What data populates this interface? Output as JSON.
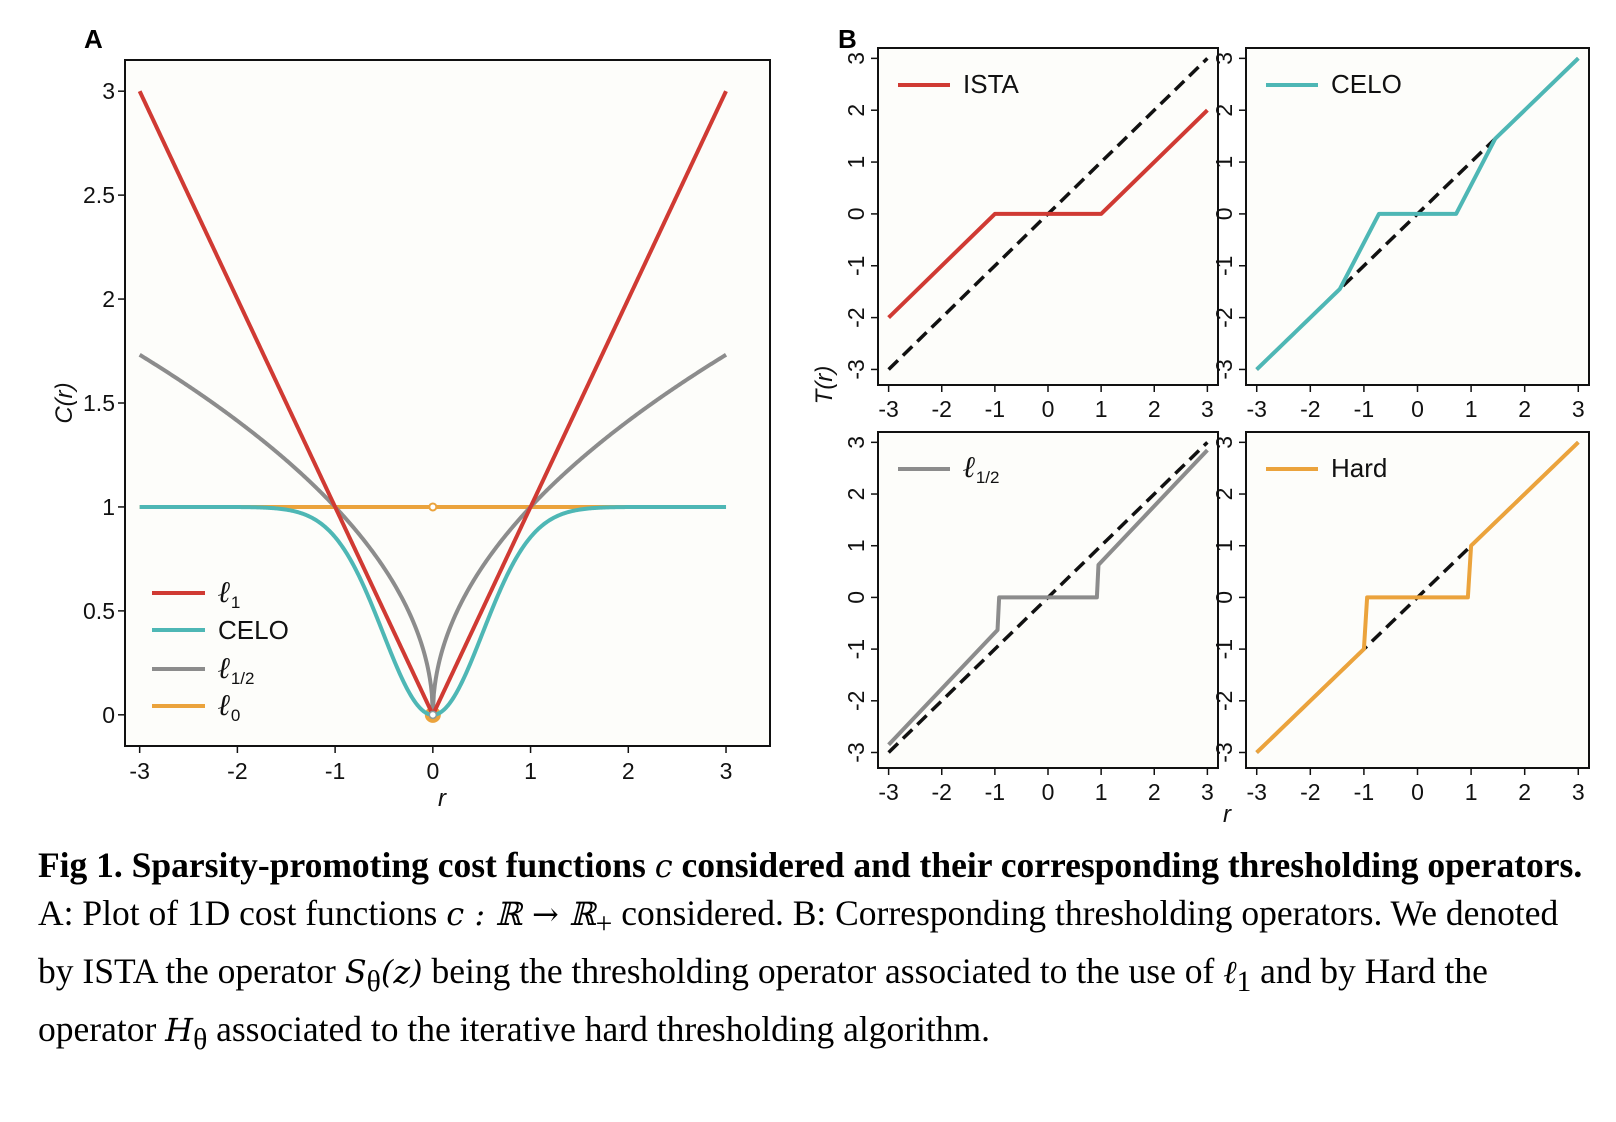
{
  "figure": {
    "panel_a_letter": "A",
    "panel_b_letter": "B"
  },
  "colors": {
    "l1": "#d03a33",
    "celo": "#4eb7b5",
    "lhalf": "#8c8c8c",
    "l0": "#eba33c",
    "identity": "#111111",
    "plot_bg": "#fdfdfa"
  },
  "chart_data": [
    {
      "id": "A",
      "type": "line",
      "xlabel": "r",
      "ylabel": "C(r)",
      "xlim": [
        -3,
        3
      ],
      "ylim": [
        0,
        3
      ],
      "xticks": [
        "-3",
        "-2",
        "-1",
        "0",
        "1",
        "2",
        "3"
      ],
      "yticks": [
        "0",
        "0.5",
        "1",
        "1.5",
        "2",
        "2.5",
        "3"
      ],
      "series": [
        {
          "name": "ℓ1",
          "sym": "ℓ",
          "sub": "1",
          "color": "l1",
          "function": "|r|",
          "x": [
            -3,
            -2,
            -1,
            0,
            1,
            2,
            3
          ],
          "y": [
            3,
            2,
            1,
            0,
            1,
            2,
            3
          ]
        },
        {
          "name": "CELO",
          "color": "celo",
          "function": "1 - exp(-(r/0.71)^2) approx",
          "x": [
            -3,
            -1.5,
            -1,
            -0.5,
            0,
            0.5,
            1,
            1.5,
            3
          ],
          "y": [
            1,
            0.99,
            0.86,
            0.39,
            0,
            0.39,
            0.86,
            0.99,
            1
          ]
        },
        {
          "name": "ℓ1/2",
          "sym": "ℓ",
          "sub": "1/2",
          "color": "lhalf",
          "function": "sqrt(|r|)",
          "x": [
            -3,
            -2,
            -1,
            -0.5,
            0,
            0.5,
            1,
            2,
            3
          ],
          "y": [
            1.73,
            1.41,
            1,
            0.71,
            0,
            0.71,
            1,
            1.41,
            1.73
          ]
        },
        {
          "name": "ℓ0",
          "sym": "ℓ",
          "sub": "0",
          "color": "l0",
          "function": "1 if r != 0 else 0",
          "x": [
            -3,
            3
          ],
          "y": [
            1,
            1
          ],
          "point_at_zero": [
            0,
            0
          ]
        }
      ]
    },
    {
      "id": "B",
      "type": "line",
      "xlabel": "r",
      "ylabel": "T(r)",
      "xlim": [
        -3,
        3
      ],
      "ylim": [
        -3,
        3
      ],
      "xticks": [
        "-3",
        "-2",
        "-1",
        "0",
        "1",
        "2",
        "3"
      ],
      "yticks": [
        "-3",
        "-2",
        "-1",
        "0",
        "1",
        "2",
        "3"
      ],
      "identity_line": "T(r) = r (dashed)",
      "subplots": [
        {
          "name": "ISTA",
          "color": "l1",
          "show_xticks": true,
          "show_ylabel": true,
          "x": [
            -3,
            -1,
            1,
            3
          ],
          "y": [
            -2,
            0,
            0,
            2
          ]
        },
        {
          "name": "CELO",
          "color": "celo",
          "show_xticks": true,
          "show_ylabel": false,
          "x": [
            -3,
            -1.45,
            -0.72,
            0.72,
            1.45,
            3
          ],
          "y": [
            -3,
            -1.45,
            0,
            0,
            1.45,
            3
          ]
        },
        {
          "name": "ℓ1/2",
          "sym": "ℓ",
          "sub": "1/2",
          "color": "lhalf",
          "show_xticks": true,
          "show_ylabel": false,
          "x": [
            -3,
            -0.95,
            -0.92,
            0.92,
            0.95,
            3
          ],
          "y": [
            -2.85,
            -0.63,
            0,
            0,
            0.63,
            2.85
          ]
        },
        {
          "name": "Hard",
          "color": "l0",
          "show_xticks": true,
          "show_ylabel": false,
          "x": [
            -3,
            -1.0,
            -0.94,
            0.94,
            1.0,
            3
          ],
          "y": [
            -3,
            -1.0,
            0,
            0,
            1.0,
            3
          ]
        }
      ]
    }
  ],
  "caption": {
    "label": "Fig 1. Sparsity-promoting cost functions ",
    "label_var": "c",
    "label_rest": " considered and their corresponding thresholding operators.",
    "t1": " A: Plot of 1D cost functions ",
    "math1": "c : ℝ → ℝ",
    "math1_sub": "+",
    "t2": " considered. B: Corresponding thresholding operators. We denoted by ISTA the operator ",
    "math2": "S",
    "math2_sub": "θ",
    "math2_rest": "(z)",
    "t3": " being the thresholding operator associated to the use of ",
    "math3": "ℓ",
    "math3_sub": "1",
    "t4": " and by Hard the operator ",
    "math4": "H",
    "math4_sub": "θ",
    "t5": " associated to the iterative hard thresholding algorithm."
  }
}
